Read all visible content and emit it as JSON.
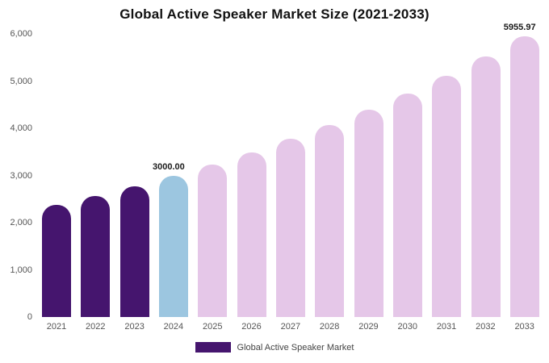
{
  "chart_data": {
    "type": "bar",
    "title": "Global Active Speaker Market Size (2021-2033)",
    "categories": [
      "2021",
      "2022",
      "2023",
      "2024",
      "2025",
      "2026",
      "2027",
      "2028",
      "2029",
      "2030",
      "2031",
      "2032",
      "2033"
    ],
    "values": [
      2370,
      2570,
      2775,
      3000,
      3237.6,
      3494.1,
      3770.8,
      4069.4,
      4391.7,
      4739.5,
      5114.9,
      5520.3,
      5955.97
    ],
    "ylim": [
      0,
      6000
    ],
    "yticks": [
      0,
      1000,
      2000,
      3000,
      4000,
      5000,
      6000
    ],
    "ytick_labels": [
      "0",
      "1,000",
      "2,000",
      "3,000",
      "4,000",
      "5,000",
      "6,000"
    ],
    "bar_colors": [
      "#45156e",
      "#45156e",
      "#45156e",
      "#9cc6e0",
      "#e5c7e8",
      "#e5c7e8",
      "#e5c7e8",
      "#e5c7e8",
      "#e5c7e8",
      "#e5c7e8",
      "#e5c7e8",
      "#e5c7e8",
      "#e5c7e8"
    ],
    "annotations": [
      {
        "category": "2024",
        "text": "3000.00"
      },
      {
        "category": "2033",
        "text": "5955.97"
      }
    ],
    "grid": false,
    "legend_position": "bottom",
    "legend": [
      {
        "label": "Global Active Speaker Market",
        "color": "#45156e"
      }
    ]
  }
}
